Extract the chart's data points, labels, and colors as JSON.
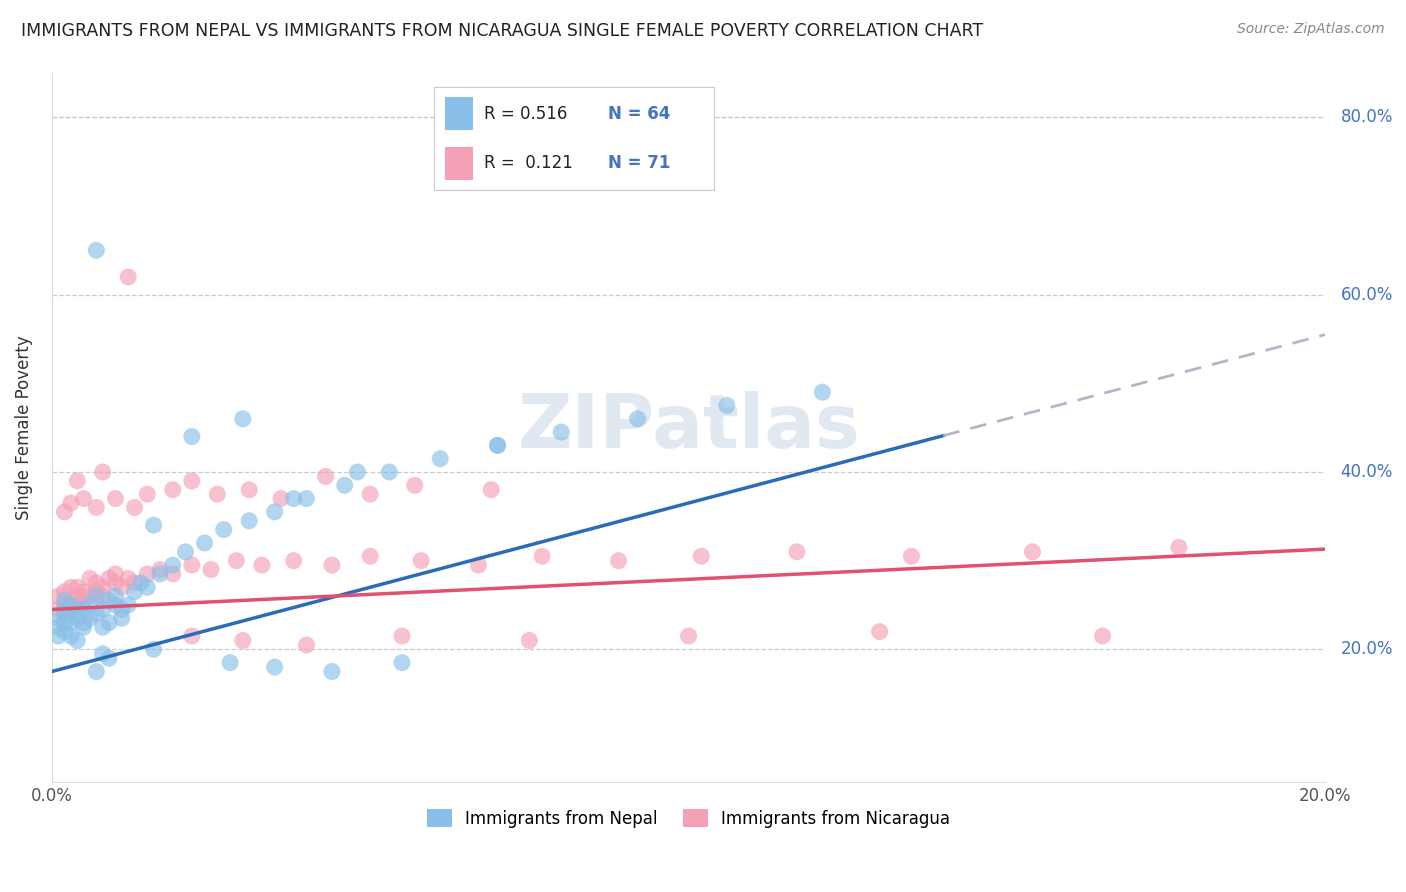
{
  "title": "IMMIGRANTS FROM NEPAL VS IMMIGRANTS FROM NICARAGUA SINGLE FEMALE POVERTY CORRELATION CHART",
  "source": "Source: ZipAtlas.com",
  "ylabel_label": "Single Female Poverty",
  "xlim": [
    0.0,
    0.2
  ],
  "ylim": [
    0.05,
    0.85
  ],
  "xticks": [
    0.0,
    0.05,
    0.1,
    0.15,
    0.2
  ],
  "xtick_labels": [
    "0.0%",
    "",
    "",
    "",
    "20.0%"
  ],
  "ytick_labels": [
    "20.0%",
    "40.0%",
    "60.0%",
    "80.0%"
  ],
  "yticks": [
    0.2,
    0.4,
    0.6,
    0.8
  ],
  "nepal_color": "#89bfe8",
  "nicaragua_color": "#f4a0b5",
  "nepal_line_color": "#2b6cb8",
  "nicaragua_line_color": "#e05070",
  "trend_extend_color": "#b0b8c8",
  "watermark": "ZIPatlas",
  "legend_nepal_R": "0.516",
  "legend_nepal_N": "64",
  "legend_nicaragua_R": "0.121",
  "legend_nicaragua_N": "71",
  "nepal_x": [
    0.001,
    0.001,
    0.001,
    0.002,
    0.002,
    0.002,
    0.002,
    0.003,
    0.003,
    0.003,
    0.003,
    0.004,
    0.004,
    0.004,
    0.005,
    0.005,
    0.005,
    0.006,
    0.006,
    0.007,
    0.007,
    0.008,
    0.008,
    0.009,
    0.009,
    0.01,
    0.01,
    0.011,
    0.011,
    0.012,
    0.013,
    0.014,
    0.015,
    0.017,
    0.019,
    0.021,
    0.024,
    0.027,
    0.031,
    0.035,
    0.04,
    0.046,
    0.053,
    0.061,
    0.07,
    0.08,
    0.092,
    0.106,
    0.121,
    0.016,
    0.022,
    0.03,
    0.038,
    0.048,
    0.007,
    0.007,
    0.008,
    0.009,
    0.016,
    0.028,
    0.035,
    0.044,
    0.055,
    0.07
  ],
  "nepal_y": [
    0.225,
    0.235,
    0.215,
    0.255,
    0.22,
    0.245,
    0.23,
    0.24,
    0.215,
    0.25,
    0.23,
    0.245,
    0.235,
    0.21,
    0.225,
    0.245,
    0.23,
    0.235,
    0.25,
    0.24,
    0.26,
    0.225,
    0.245,
    0.23,
    0.255,
    0.25,
    0.26,
    0.245,
    0.235,
    0.25,
    0.265,
    0.275,
    0.27,
    0.285,
    0.295,
    0.31,
    0.32,
    0.335,
    0.345,
    0.355,
    0.37,
    0.385,
    0.4,
    0.415,
    0.43,
    0.445,
    0.46,
    0.475,
    0.49,
    0.34,
    0.44,
    0.46,
    0.37,
    0.4,
    0.65,
    0.175,
    0.195,
    0.19,
    0.2,
    0.185,
    0.18,
    0.175,
    0.185,
    0.43
  ],
  "nicaragua_x": [
    0.001,
    0.001,
    0.002,
    0.002,
    0.002,
    0.003,
    0.003,
    0.003,
    0.004,
    0.004,
    0.004,
    0.005,
    0.005,
    0.006,
    0.006,
    0.007,
    0.007,
    0.008,
    0.008,
    0.009,
    0.01,
    0.01,
    0.011,
    0.012,
    0.013,
    0.015,
    0.017,
    0.019,
    0.022,
    0.025,
    0.029,
    0.033,
    0.038,
    0.044,
    0.05,
    0.058,
    0.067,
    0.077,
    0.089,
    0.102,
    0.117,
    0.135,
    0.154,
    0.177,
    0.015,
    0.022,
    0.031,
    0.043,
    0.057,
    0.002,
    0.003,
    0.005,
    0.007,
    0.01,
    0.013,
    0.019,
    0.026,
    0.036,
    0.05,
    0.069,
    0.022,
    0.03,
    0.04,
    0.055,
    0.075,
    0.1,
    0.13,
    0.165,
    0.004,
    0.008,
    0.012
  ],
  "nicaragua_y": [
    0.245,
    0.26,
    0.25,
    0.265,
    0.24,
    0.255,
    0.27,
    0.245,
    0.26,
    0.25,
    0.27,
    0.255,
    0.265,
    0.26,
    0.28,
    0.265,
    0.275,
    0.26,
    0.27,
    0.28,
    0.275,
    0.285,
    0.27,
    0.28,
    0.275,
    0.285,
    0.29,
    0.285,
    0.295,
    0.29,
    0.3,
    0.295,
    0.3,
    0.295,
    0.305,
    0.3,
    0.295,
    0.305,
    0.3,
    0.305,
    0.31,
    0.305,
    0.31,
    0.315,
    0.375,
    0.39,
    0.38,
    0.395,
    0.385,
    0.355,
    0.365,
    0.37,
    0.36,
    0.37,
    0.36,
    0.38,
    0.375,
    0.37,
    0.375,
    0.38,
    0.215,
    0.21,
    0.205,
    0.215,
    0.21,
    0.215,
    0.22,
    0.215,
    0.39,
    0.4,
    0.62
  ]
}
